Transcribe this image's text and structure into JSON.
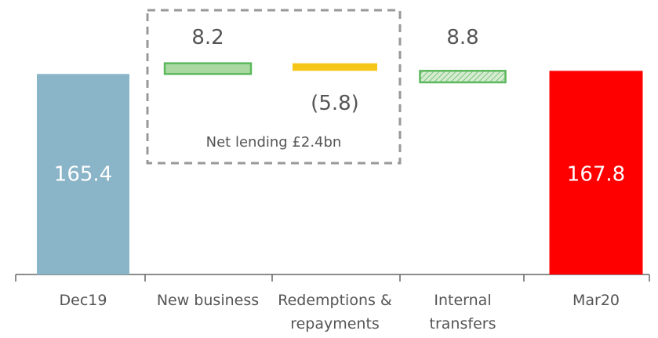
{
  "chart_data": {
    "type": "waterfall",
    "categories": [
      "Dec19",
      "New business",
      "Redemptions & repayments",
      "Internal transfers",
      "Mar20"
    ],
    "values": [
      165.4,
      8.2,
      -5.8,
      8.8,
      167.8
    ],
    "value_labels": [
      "165.4",
      "8.2",
      "(5.8)",
      "8.8",
      "167.8"
    ],
    "kinds": [
      "total",
      "change",
      "change",
      "transfer",
      "total"
    ],
    "colors": [
      "#8ab4c8",
      "#a9d8a0",
      "#f5c518",
      "#a9d8a0",
      "#ff0000"
    ],
    "annotation": "Net lending £2.4bn",
    "ylim": [
      12,
      186
    ]
  }
}
